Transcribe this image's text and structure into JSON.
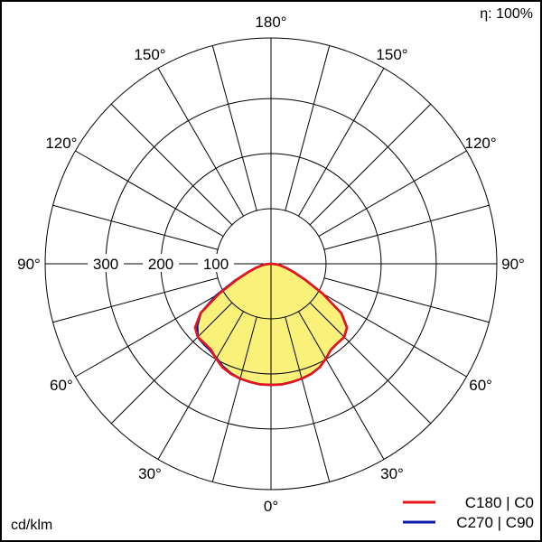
{
  "chart_data": {
    "type": "polar-photometric",
    "efficiency_label": "η: 100%",
    "unit_label": "cd/klm",
    "radial_ticks": [
      100,
      200,
      300
    ],
    "radial_max": 410,
    "angle_labels": [
      {
        "text": "0°",
        "angle": 0
      },
      {
        "text": "30°",
        "angle": -30
      },
      {
        "text": "30°",
        "angle": 30
      },
      {
        "text": "60°",
        "angle": -60
      },
      {
        "text": "60°",
        "angle": 60
      },
      {
        "text": "90°",
        "angle": -90
      },
      {
        "text": "90°",
        "angle": 90
      },
      {
        "text": "120°",
        "angle": -120
      },
      {
        "text": "120°",
        "angle": 120
      },
      {
        "text": "150°",
        "angle": -150
      },
      {
        "text": "150°",
        "angle": 150
      },
      {
        "text": "180°",
        "angle": 180
      }
    ],
    "series": [
      {
        "name": "C180 | C0",
        "color": "#e8141b",
        "angles": [
          -90,
          -85,
          -80,
          -75,
          -70,
          -65,
          -60,
          -55,
          -50,
          -45,
          -40,
          -35,
          -30,
          -25,
          -20,
          -15,
          -10,
          -5,
          0,
          5,
          10,
          15,
          20,
          25,
          30,
          35,
          40,
          45,
          50,
          55,
          60,
          65,
          70,
          75,
          80,
          85,
          90
        ],
        "values": [
          0,
          8,
          17,
          28,
          44,
          68,
          108,
          156,
          180,
          188,
          188,
          190,
          199,
          208,
          213,
          216,
          218,
          220,
          220,
          220,
          218,
          216,
          213,
          208,
          199,
          190,
          188,
          188,
          180,
          156,
          108,
          68,
          44,
          28,
          17,
          8,
          0
        ]
      },
      {
        "name": "C270 | C90",
        "color": "#0a1aa8",
        "angles": [
          -90,
          -85,
          -80,
          -75,
          -70,
          -65,
          -60,
          -55,
          -50,
          -45,
          -40,
          -35,
          -30,
          -25,
          -20,
          -15,
          -10,
          -5,
          0,
          5,
          10,
          15,
          20,
          25,
          30,
          35,
          40,
          45,
          50,
          55,
          60,
          65,
          70,
          75,
          80,
          85,
          90
        ],
        "values": [
          0,
          8,
          17,
          28,
          44,
          72,
          114,
          156,
          175,
          188,
          190,
          192,
          198,
          206,
          212,
          216,
          218,
          220,
          220,
          220,
          218,
          216,
          213,
          208,
          199,
          190,
          188,
          188,
          180,
          156,
          108,
          68,
          44,
          28,
          17,
          8,
          0
        ]
      }
    ],
    "colors": {
      "fill": "#f9f17a",
      "grid": "#000000"
    }
  }
}
